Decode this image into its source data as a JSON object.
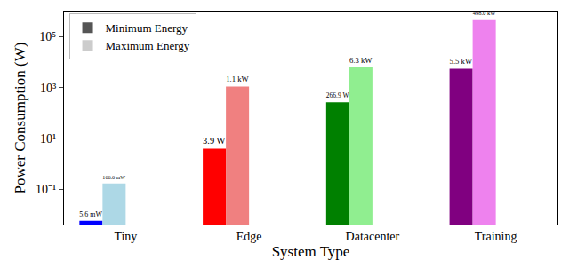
{
  "chart_data": {
    "type": "bar",
    "x_label": "System Type",
    "y_label": "Power Consumption (W)",
    "categories": [
      "Tiny",
      "Edge",
      "Datacenter",
      "Training"
    ],
    "series": [
      {
        "name": "Minimum Energy",
        "color": "#555555",
        "colors": [
          "#0000ff",
          "#ff0000",
          "#008000",
          "#800080"
        ],
        "values": [
          0.0056,
          3.9,
          266.9,
          5500
        ],
        "value_labels": [
          "5.6 mW",
          "3.9 W",
          "266.9 W",
          "5.5 kW"
        ]
      },
      {
        "name": "Maximum Energy",
        "color": "#cccccc",
        "colors": [
          "#add8e6",
          "#f08080",
          "#90ee90",
          "#ee82ee"
        ],
        "values": [
          0.1666,
          1100,
          6300,
          498000
        ],
        "value_labels": [
          "166.6 mW",
          "1.1 kW",
          "6.3 kW",
          "498.0 kW"
        ]
      }
    ],
    "log": "y",
    "ylim": [
      0.004,
      1000000
    ],
    "yticks": [
      {
        "value": 0.1,
        "label": "10⁻¹"
      },
      {
        "value": 10,
        "label": "10¹"
      },
      {
        "value": 1000,
        "label": "10³"
      },
      {
        "value": 100000,
        "label": "10⁵"
      }
    ],
    "grid": false,
    "legend": "upper left",
    "data_labels": true
  }
}
